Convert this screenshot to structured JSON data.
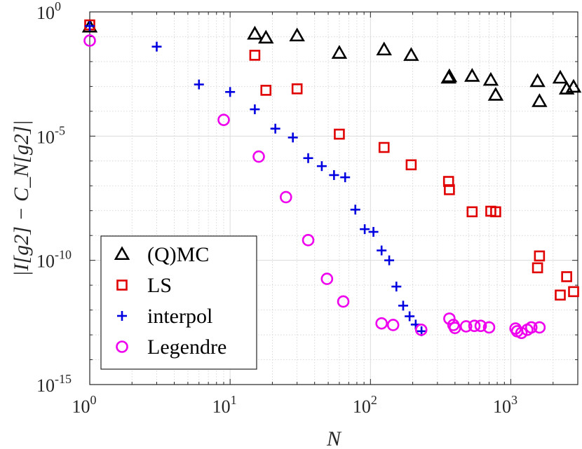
{
  "chart_data": {
    "type": "scatter",
    "title": "",
    "xlabel": "N",
    "ylabel": "|I[g2] − C_N[g2]|",
    "xscale": "log",
    "yscale": "log",
    "xlim": [
      1,
      3000
    ],
    "ylim": [
      1e-15,
      1
    ],
    "grid": true,
    "legend_position": "bottom-left",
    "x_ticks": [
      1,
      10,
      100,
      1000
    ],
    "x_tick_labels": [
      {
        "base": "10",
        "exp": "0"
      },
      {
        "base": "10",
        "exp": "1"
      },
      {
        "base": "10",
        "exp": "2"
      },
      {
        "base": "10",
        "exp": "3"
      }
    ],
    "y_ticks": [
      1e-15,
      1e-10,
      1e-05,
      1
    ],
    "y_tick_labels": [
      {
        "base": "10",
        "exp": "-15"
      },
      {
        "base": "10",
        "exp": "-10"
      },
      {
        "base": "10",
        "exp": "-5"
      },
      {
        "base": "10",
        "exp": "0"
      }
    ],
    "series": [
      {
        "name": "(Q)MC",
        "marker": "triangle",
        "color": "#000000",
        "x": [
          1,
          15,
          18,
          30,
          60,
          125,
          195,
          360,
          365,
          530,
          720,
          780,
          1550,
          1600,
          2250,
          2500,
          2800
        ],
        "y": [
          0.25,
          0.13,
          0.09,
          0.11,
          0.022,
          0.03,
          0.018,
          0.0022,
          0.0025,
          0.0026,
          0.0018,
          0.00045,
          0.0016,
          0.00025,
          0.0022,
          0.0008,
          0.00095
        ]
      },
      {
        "name": "LS",
        "marker": "square",
        "color": "#e00000",
        "x": [
          1,
          15,
          18,
          30,
          60,
          125,
          195,
          360,
          365,
          530,
          720,
          780,
          1550,
          1600,
          2250,
          2500,
          2800
        ],
        "y": [
          0.3,
          0.018,
          0.0007,
          0.0008,
          1.2e-05,
          3.5e-06,
          7e-07,
          1.5e-07,
          7e-08,
          9e-09,
          9.5e-09,
          9e-09,
          5e-11,
          1.5e-10,
          4e-12,
          2.2e-11,
          5.5e-12
        ]
      },
      {
        "name": "interpol",
        "marker": "plus",
        "color": "#0000e0",
        "x": [
          1,
          3,
          6,
          10,
          15,
          21,
          28,
          36,
          45,
          55,
          66,
          78,
          91,
          105,
          120,
          136,
          153,
          171,
          190,
          210,
          231
        ],
        "y": [
          0.27,
          0.04,
          0.0012,
          0.0006,
          0.00012,
          2e-05,
          8.8e-06,
          1.3e-06,
          6.2e-07,
          2.7e-07,
          2.2e-07,
          1.1e-08,
          1.8e-09,
          1.4e-09,
          2.5e-10,
          1e-10,
          8.8e-12,
          1.5e-12,
          5.6e-13,
          2.6e-13,
          1.4e-13
        ]
      },
      {
        "name": "Legendre",
        "marker": "circle",
        "color": "#ee00ee",
        "x": [
          1,
          9,
          16,
          25,
          36,
          49,
          64,
          120,
          145,
          230,
          365,
          390,
          400,
          480,
          550,
          610,
          700,
          1080,
          1110,
          1190,
          1310,
          1400,
          1600
        ],
        "y": [
          0.07,
          4.5e-05,
          1.5e-06,
          3.5e-08,
          6.5e-10,
          1.8e-11,
          2.2e-12,
          2.9e-13,
          2.5e-13,
          1.6e-13,
          4.5e-13,
          2.5e-13,
          1.9e-13,
          2.2e-13,
          2.3e-13,
          2.3e-13,
          2e-13,
          1.8e-13,
          1.4e-13,
          1.2e-13,
          1.6e-13,
          2e-13,
          2e-13
        ]
      }
    ]
  }
}
